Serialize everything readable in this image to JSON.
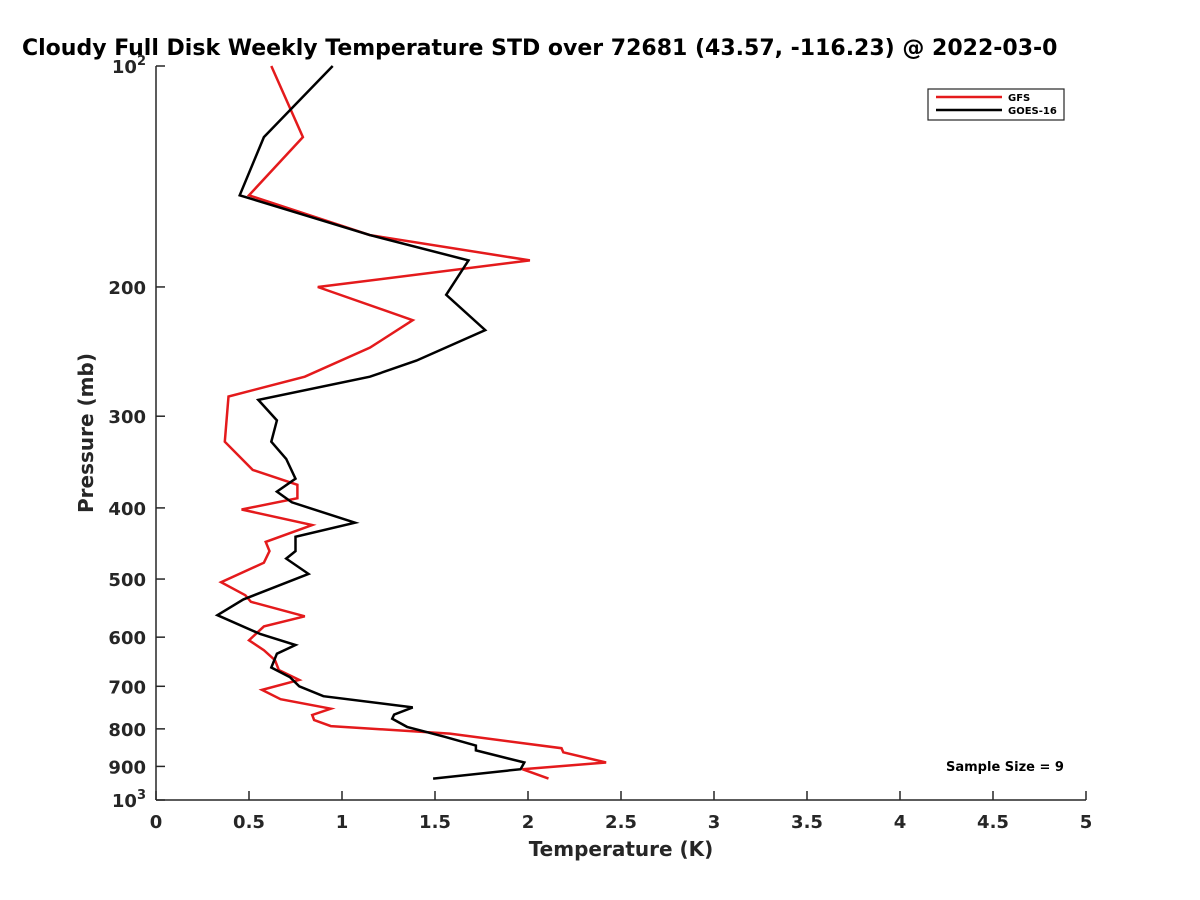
{
  "chart_data": {
    "type": "line",
    "title": "Cloudy Full Disk Weekly Temperature STD over 72681 (43.57, -116.23) @ 2022-03-0",
    "xlabel": "Temperature (K)",
    "ylabel": "Pressure (mb)",
    "xlim": [
      0,
      5
    ],
    "ylim": [
      100,
      1000
    ],
    "y_scale": "log",
    "y_reversed": true,
    "grid": false,
    "legend_position": "top-right",
    "x_ticks": [
      0,
      0.5,
      1,
      1.5,
      2,
      2.5,
      3,
      3.5,
      4,
      4.5,
      5
    ],
    "x_tick_labels": [
      "0",
      "0.5",
      "1",
      "1.5",
      "2",
      "2.5",
      "3",
      "3.5",
      "4",
      "4.5",
      "5"
    ],
    "y_ticks": [
      100,
      200,
      300,
      400,
      500,
      600,
      700,
      800,
      900,
      1000
    ],
    "y_tick_labels": [
      {
        "base": "10",
        "exp": "2"
      },
      {
        "base": "200",
        "exp": ""
      },
      {
        "base": "300",
        "exp": ""
      },
      {
        "base": "400",
        "exp": ""
      },
      {
        "base": "500",
        "exp": ""
      },
      {
        "base": "600",
        "exp": ""
      },
      {
        "base": "700",
        "exp": ""
      },
      {
        "base": "800",
        "exp": ""
      },
      {
        "base": "900",
        "exp": ""
      },
      {
        "base": "10",
        "exp": "3"
      }
    ],
    "annotation": "Sample Size = 9",
    "series": [
      {
        "name": "GFS",
        "color": "#e41a1c",
        "points": [
          [
            0.62,
            100
          ],
          [
            0.79,
            125
          ],
          [
            0.5,
            150
          ],
          [
            1.15,
            170
          ],
          [
            2.01,
            184
          ],
          [
            0.87,
            200
          ],
          [
            1.38,
            222
          ],
          [
            1.15,
            242
          ],
          [
            0.8,
            265
          ],
          [
            0.39,
            282
          ],
          [
            0.37,
            325
          ],
          [
            0.52,
            355
          ],
          [
            0.76,
            372
          ],
          [
            0.76,
            388
          ],
          [
            0.46,
            402
          ],
          [
            0.84,
            422
          ],
          [
            0.59,
            445
          ],
          [
            0.61,
            458
          ],
          [
            0.58,
            475
          ],
          [
            0.35,
            505
          ],
          [
            0.48,
            526
          ],
          [
            0.51,
            537
          ],
          [
            0.8,
            562
          ],
          [
            0.58,
            580
          ],
          [
            0.5,
            606
          ],
          [
            0.58,
            625
          ],
          [
            0.64,
            645
          ],
          [
            0.66,
            665
          ],
          [
            0.77,
            686
          ],
          [
            0.57,
            708
          ],
          [
            0.67,
            729
          ],
          [
            0.94,
            751
          ],
          [
            0.84,
            766
          ],
          [
            0.85,
            778
          ],
          [
            0.94,
            793
          ],
          [
            1.58,
            812
          ],
          [
            2.18,
            850
          ],
          [
            2.19,
            861
          ],
          [
            2.42,
            889
          ],
          [
            1.97,
            908
          ],
          [
            2.11,
            935
          ]
        ]
      },
      {
        "name": "GOES-16",
        "color": "#000000",
        "points": [
          [
            0.95,
            100
          ],
          [
            0.58,
            125
          ],
          [
            0.45,
            150
          ],
          [
            1.15,
            170
          ],
          [
            1.68,
            184
          ],
          [
            1.56,
            205
          ],
          [
            1.77,
            229
          ],
          [
            1.4,
            252
          ],
          [
            1.15,
            265
          ],
          [
            0.55,
            285
          ],
          [
            0.65,
            304
          ],
          [
            0.62,
            325
          ],
          [
            0.7,
            343
          ],
          [
            0.75,
            365
          ],
          [
            0.65,
            380
          ],
          [
            0.73,
            393
          ],
          [
            1.07,
            419
          ],
          [
            0.75,
            438
          ],
          [
            0.75,
            458
          ],
          [
            0.7,
            469
          ],
          [
            0.82,
            492
          ],
          [
            0.47,
            533
          ],
          [
            0.33,
            560
          ],
          [
            0.56,
            594
          ],
          [
            0.75,
            615
          ],
          [
            0.65,
            632
          ],
          [
            0.62,
            660
          ],
          [
            0.72,
            680
          ],
          [
            0.77,
            700
          ],
          [
            0.9,
            722
          ],
          [
            1.38,
            748
          ],
          [
            1.28,
            765
          ],
          [
            1.27,
            775
          ],
          [
            1.35,
            795
          ],
          [
            1.55,
            820
          ],
          [
            1.72,
            843
          ],
          [
            1.72,
            856
          ],
          [
            1.98,
            889
          ],
          [
            1.96,
            908
          ],
          [
            1.49,
            935
          ]
        ]
      }
    ]
  }
}
